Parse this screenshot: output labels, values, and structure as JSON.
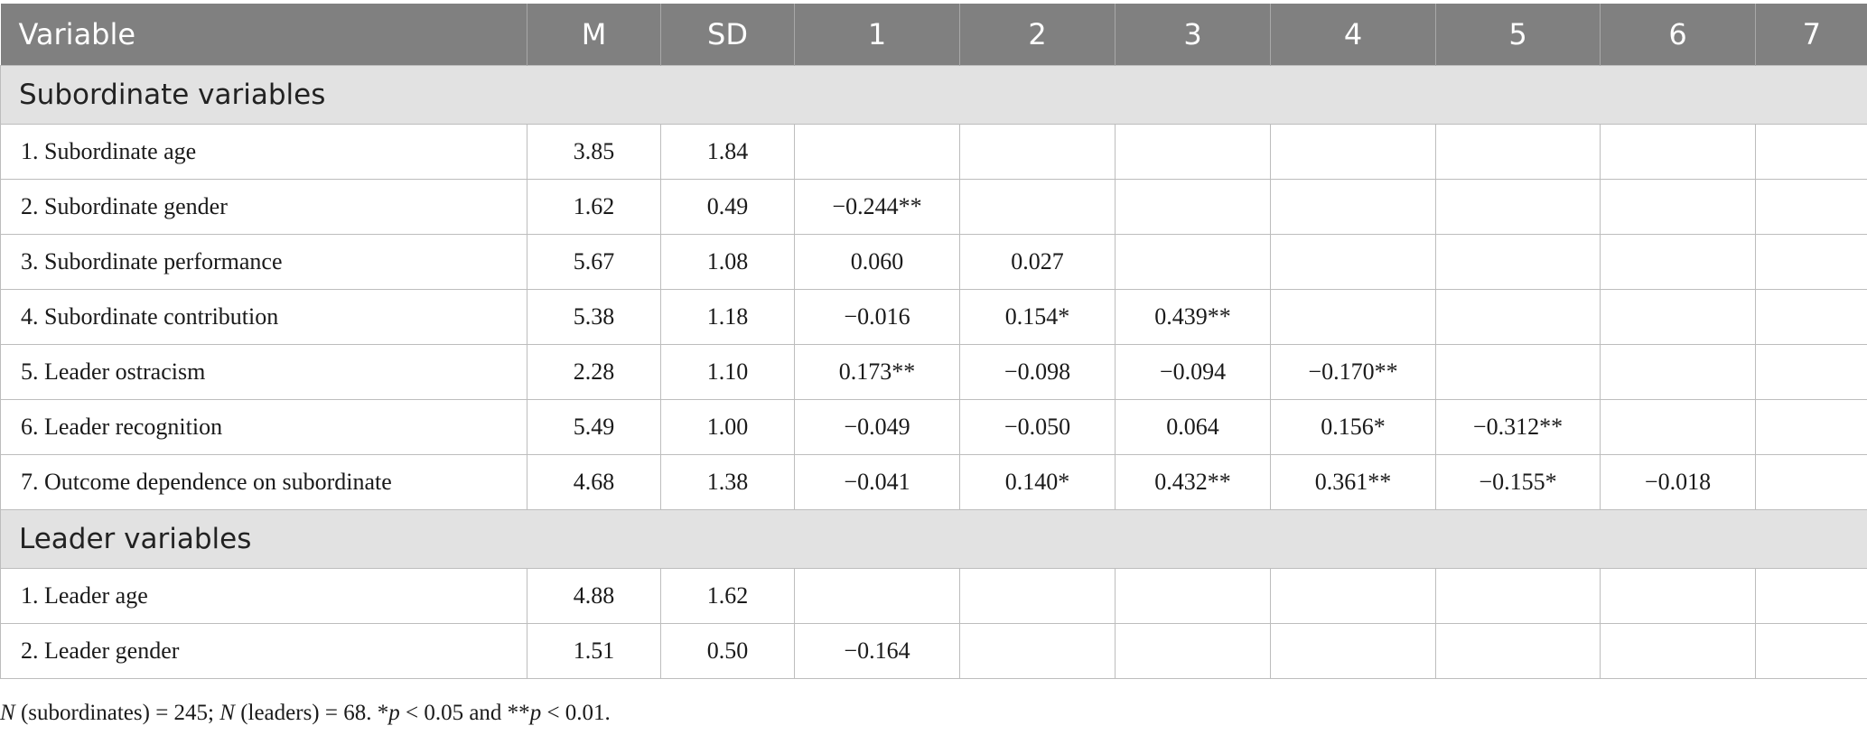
{
  "table": {
    "headers": [
      "Variable",
      "M",
      "SD",
      "1",
      "2",
      "3",
      "4",
      "5",
      "6",
      "7"
    ],
    "sections": [
      {
        "title": "Subordinate variables",
        "rows": [
          {
            "label": "1.  Subordinate age",
            "M": "3.85",
            "SD": "1.84",
            "cells": [
              "",
              "",
              "",
              "",
              "",
              "",
              ""
            ]
          },
          {
            "label": "2.  Subordinate gender",
            "M": "1.62",
            "SD": "0.49",
            "cells": [
              "−0.244**",
              "",
              "",
              "",
              "",
              "",
              ""
            ]
          },
          {
            "label": "3.  Subordinate performance",
            "M": "5.67",
            "SD": "1.08",
            "cells": [
              "0.060",
              "0.027",
              "",
              "",
              "",
              "",
              ""
            ]
          },
          {
            "label": "4.  Subordinate contribution",
            "M": "5.38",
            "SD": "1.18",
            "cells": [
              "−0.016",
              "0.154*",
              "0.439**",
              "",
              "",
              "",
              ""
            ]
          },
          {
            "label": "5.  Leader ostracism",
            "M": "2.28",
            "SD": "1.10",
            "cells": [
              "0.173**",
              "−0.098",
              "−0.094",
              "−0.170**",
              "",
              "",
              ""
            ]
          },
          {
            "label": "6.  Leader recognition",
            "M": "5.49",
            "SD": "1.00",
            "cells": [
              "−0.049",
              "−0.050",
              "0.064",
              "0.156*",
              "−0.312**",
              "",
              ""
            ]
          },
          {
            "label": "7.  Outcome dependence on subordinate",
            "M": "4.68",
            "SD": "1.38",
            "cells": [
              "−0.041",
              "0.140*",
              "0.432**",
              "0.361**",
              "−0.155*",
              "−0.018",
              ""
            ]
          }
        ]
      },
      {
        "title": "Leader variables",
        "rows": [
          {
            "label": "1.  Leader age",
            "M": "4.88",
            "SD": "1.62",
            "cells": [
              "",
              "",
              "",
              "",
              "",
              "",
              ""
            ]
          },
          {
            "label": "2.  Leader gender",
            "M": "1.51",
            "SD": "0.50",
            "cells": [
              "−0.164",
              "",
              "",
              "",
              "",
              "",
              ""
            ]
          }
        ]
      }
    ]
  },
  "footnote": {
    "n1": "N",
    "t1": " (subordinates) = 245; ",
    "n2": "N",
    "t2": " (leaders) = 68. *",
    "p1": "p",
    "t3": " < 0.05 and **",
    "p2": "p",
    "t4": " < 0.01."
  }
}
